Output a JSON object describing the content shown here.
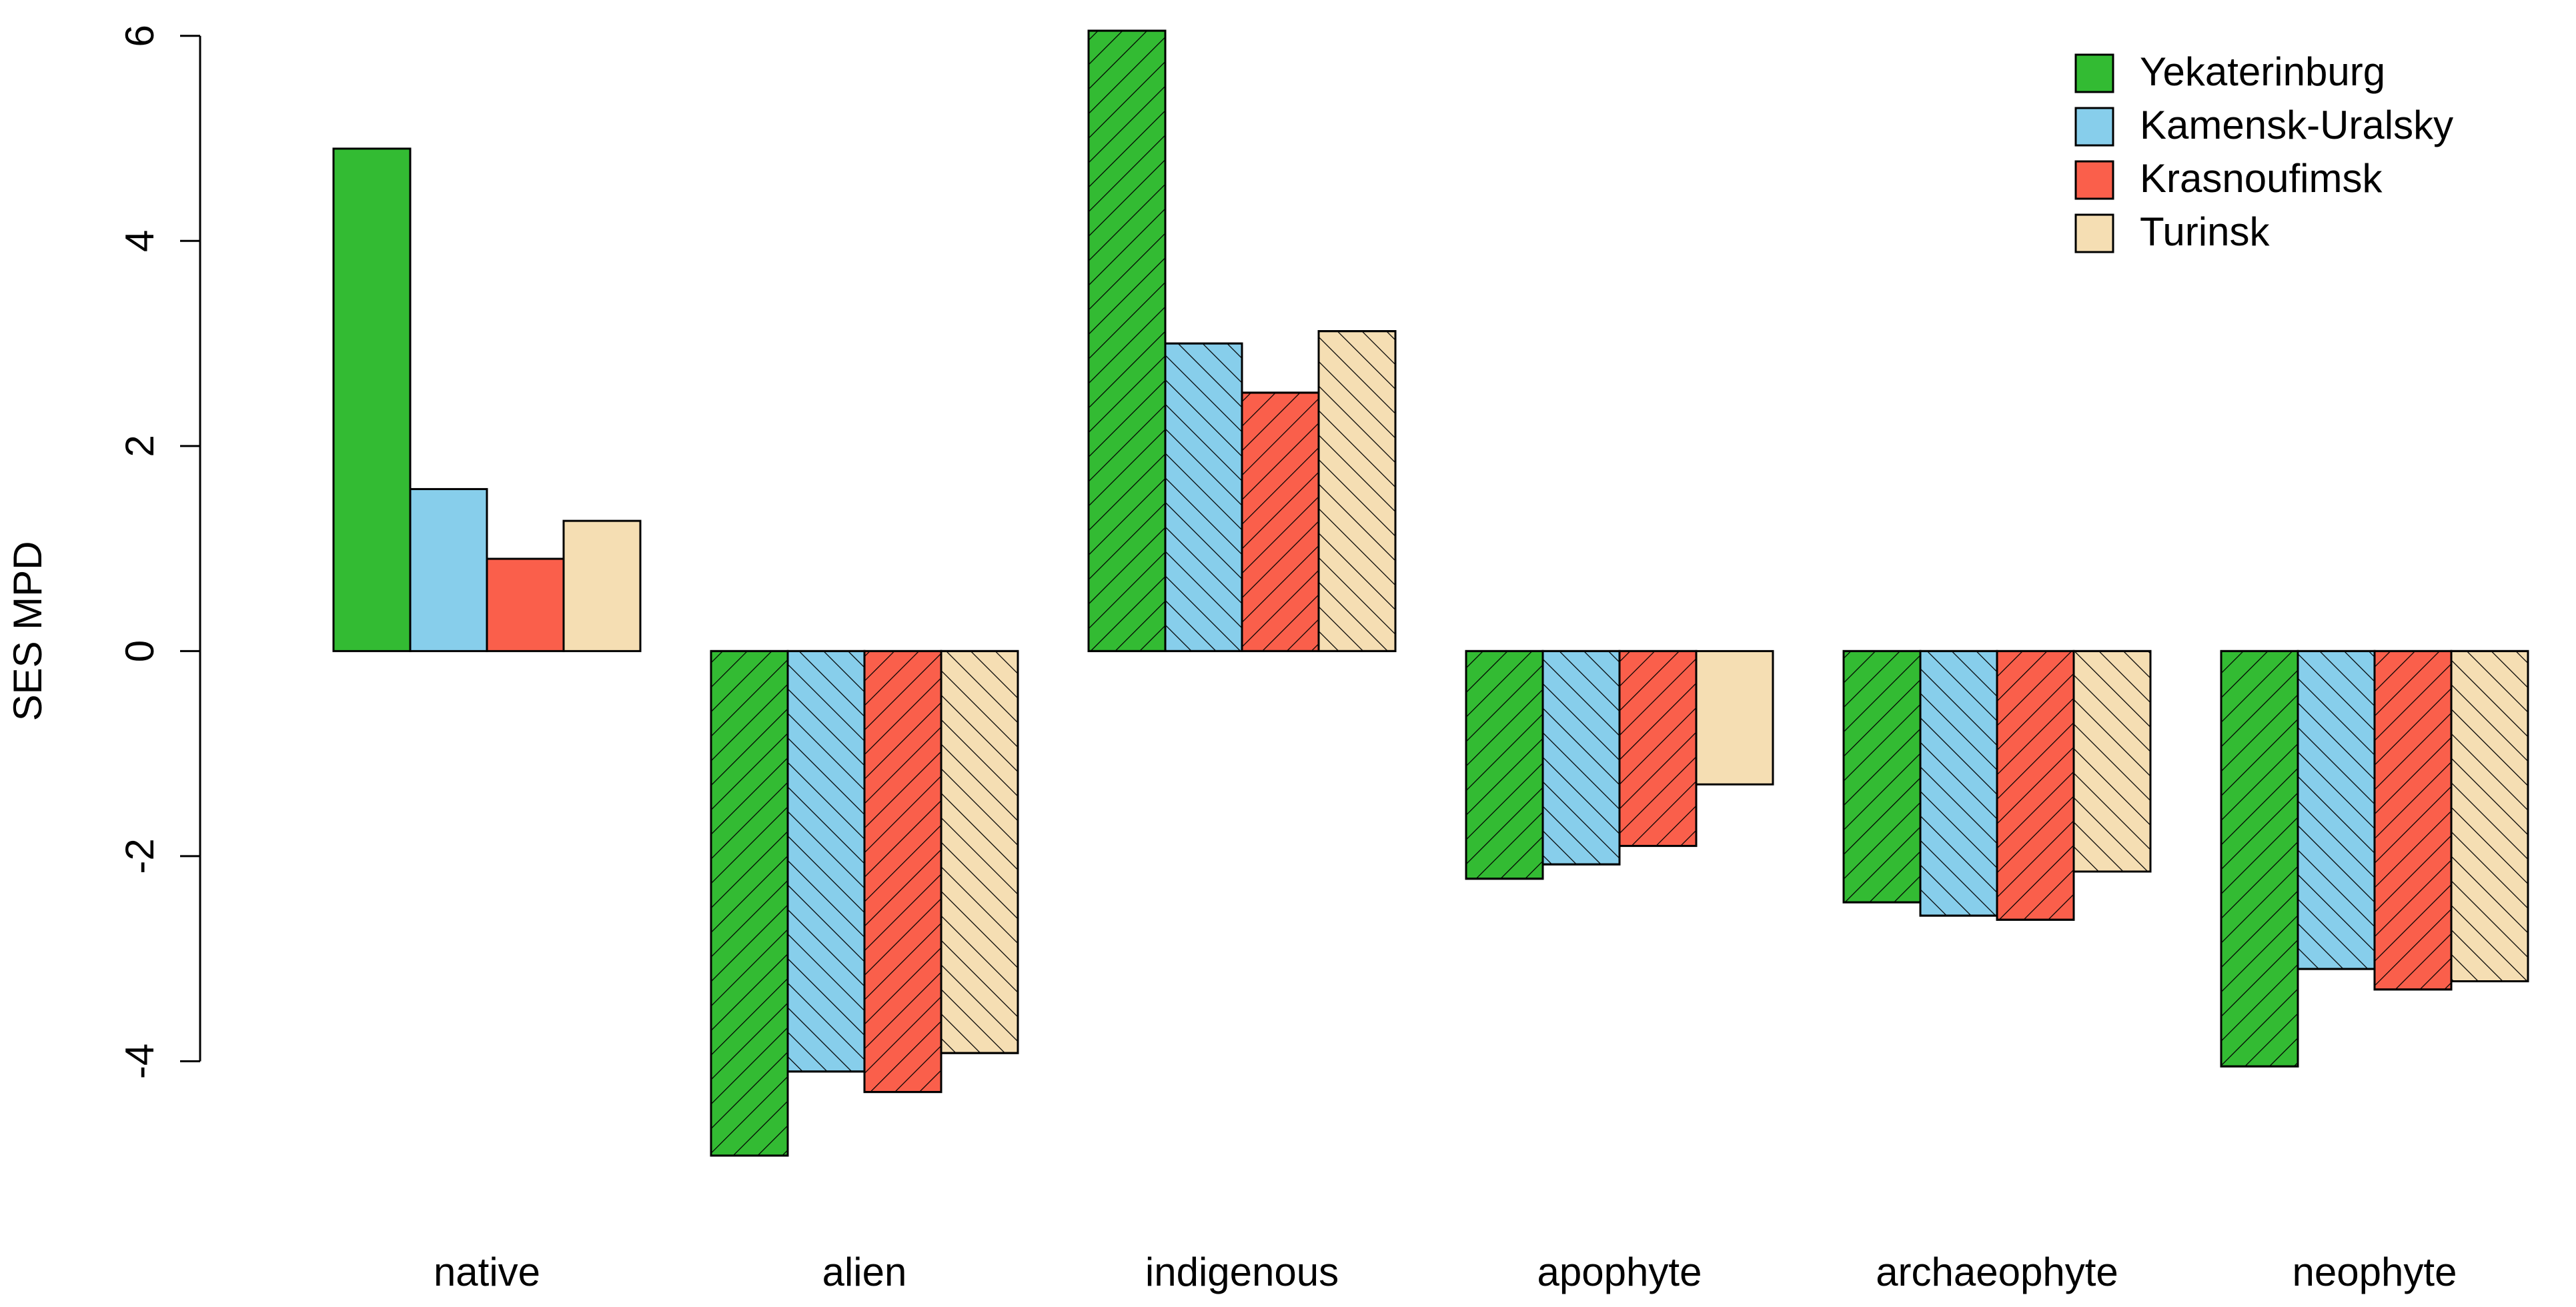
{
  "chart_data": {
    "type": "bar",
    "title": "",
    "xlabel": "",
    "ylabel": "SES MPD",
    "ylim": [
      -5.2,
      6.2
    ],
    "yticks": [
      6,
      4,
      2,
      0,
      -2,
      -4
    ],
    "ytick_labels": [
      "6",
      "4",
      "2",
      "0",
      "-2",
      "-4"
    ],
    "grid": false,
    "legend_position": "top-right",
    "categories": [
      "native",
      "alien",
      "indigenous",
      "apophyte",
      "archaeophyte",
      "neophyte"
    ],
    "series": [
      {
        "name": "Yekaterinburg",
        "color": "#33bb33",
        "values": [
          4.9,
          -4.92,
          6.05,
          -2.22,
          -2.45,
          -4.05
        ]
      },
      {
        "name": "Kamensk-Uralsky",
        "color": "#87ceeb",
        "values": [
          1.58,
          -4.1,
          3.0,
          -2.08,
          -2.58,
          -3.1
        ]
      },
      {
        "name": "Krasnoufimsk",
        "color": "#fa5f4b",
        "values": [
          0.9,
          -4.3,
          2.52,
          -1.9,
          -2.62,
          -3.3
        ]
      },
      {
        "name": "Turinsk",
        "color": "#f5deb3",
        "values": [
          1.27,
          -3.92,
          3.12,
          -1.3,
          -2.15,
          -3.22
        ]
      }
    ],
    "hatched": [
      [
        false,
        true,
        true,
        true,
        true,
        true
      ],
      [
        false,
        true,
        true,
        true,
        true,
        true
      ],
      [
        false,
        true,
        true,
        true,
        true,
        true
      ],
      [
        false,
        true,
        true,
        false,
        true,
        true
      ]
    ]
  }
}
